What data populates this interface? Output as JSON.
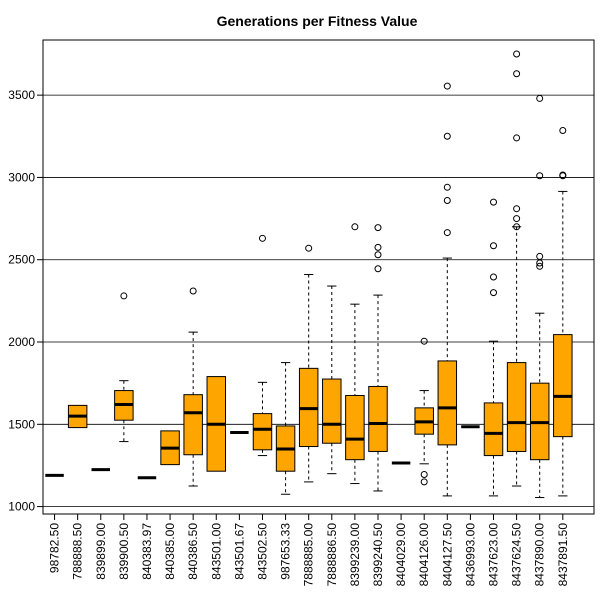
{
  "chart_data": {
    "type": "boxplot",
    "title": "Generations per Fitness Value",
    "xlabel": "",
    "ylabel": "",
    "ylim": [
      955,
      3835
    ],
    "y_ticks": [
      1000,
      1500,
      2000,
      2500,
      3000,
      3500
    ],
    "y_tick_labels": [
      "1000",
      "1500",
      "2000",
      "2500",
      "3000",
      "3500"
    ],
    "grid": "horizontal",
    "colors": {
      "box_fill": "#ffa500",
      "stroke": "#000000",
      "grid": "#000000",
      "background": "#ffffff"
    },
    "categories": [
      "98782.50",
      "788888.50",
      "839899.00",
      "839900.50",
      "840383.97",
      "840385.00",
      "840386.50",
      "843501.00",
      "843501.67",
      "843502.50",
      "987653.33",
      "7888885.00",
      "7888886.50",
      "8399239.00",
      "8399240.50",
      "8404029.00",
      "8404126.00",
      "8404127.50",
      "8436993.00",
      "8437623.00",
      "8437624.50",
      "8437890.00",
      "8437891.50"
    ],
    "boxes": [
      {
        "min": 1190,
        "q1": 1190,
        "median": 1190,
        "q3": 1190,
        "max": 1190,
        "outliers": []
      },
      {
        "min": 1480,
        "q1": 1480,
        "median": 1550,
        "q3": 1615,
        "max": 1615,
        "outliers": []
      },
      {
        "min": 1225,
        "q1": 1225,
        "median": 1225,
        "q3": 1225,
        "max": 1225,
        "outliers": []
      },
      {
        "min": 1395,
        "q1": 1525,
        "median": 1620,
        "q3": 1705,
        "max": 1765,
        "outliers": [
          2280
        ]
      },
      {
        "min": 1175,
        "q1": 1175,
        "median": 1175,
        "q3": 1175,
        "max": 1175,
        "outliers": []
      },
      {
        "min": 1255,
        "q1": 1255,
        "median": 1355,
        "q3": 1460,
        "max": 1460,
        "outliers": []
      },
      {
        "min": 1125,
        "q1": 1315,
        "median": 1570,
        "q3": 1680,
        "max": 2060,
        "outliers": [
          2310
        ]
      },
      {
        "min": 1215,
        "q1": 1215,
        "median": 1500,
        "q3": 1790,
        "max": 1790,
        "outliers": []
      },
      {
        "min": 1450,
        "q1": 1450,
        "median": 1450,
        "q3": 1450,
        "max": 1450,
        "outliers": []
      },
      {
        "min": 1310,
        "q1": 1345,
        "median": 1470,
        "q3": 1565,
        "max": 1755,
        "outliers": [
          2630
        ]
      },
      {
        "min": 1075,
        "q1": 1215,
        "median": 1350,
        "q3": 1490,
        "max": 1875,
        "outliers": []
      },
      {
        "min": 1150,
        "q1": 1365,
        "median": 1595,
        "q3": 1840,
        "max": 2410,
        "outliers": [
          2570
        ]
      },
      {
        "min": 1200,
        "q1": 1385,
        "median": 1500,
        "q3": 1775,
        "max": 2340,
        "outliers": []
      },
      {
        "min": 1140,
        "q1": 1285,
        "median": 1410,
        "q3": 1675,
        "max": 2230,
        "outliers": [
          2700
        ]
      },
      {
        "min": 1095,
        "q1": 1335,
        "median": 1505,
        "q3": 1730,
        "max": 2285,
        "outliers": [
          2445,
          2530,
          2575,
          2695
        ]
      },
      {
        "min": 1265,
        "q1": 1265,
        "median": 1265,
        "q3": 1265,
        "max": 1265,
        "outliers": []
      },
      {
        "min": 1260,
        "q1": 1440,
        "median": 1515,
        "q3": 1600,
        "max": 1705,
        "outliers": [
          1150,
          1195,
          2005
        ]
      },
      {
        "min": 1065,
        "q1": 1375,
        "median": 1600,
        "q3": 1885,
        "max": 2510,
        "outliers": [
          2665,
          2860,
          2940,
          3250,
          3555
        ]
      },
      {
        "min": 1485,
        "q1": 1485,
        "median": 1485,
        "q3": 1485,
        "max": 1485,
        "outliers": []
      },
      {
        "min": 1065,
        "q1": 1310,
        "median": 1445,
        "q3": 1630,
        "max": 2005,
        "outliers": [
          2300,
          2395,
          2585,
          2850
        ]
      },
      {
        "min": 1125,
        "q1": 1335,
        "median": 1510,
        "q3": 1875,
        "max": 2700,
        "outliers": [
          2700,
          2750,
          2810,
          3240,
          3630,
          3750
        ]
      },
      {
        "min": 1055,
        "q1": 1285,
        "median": 1510,
        "q3": 1750,
        "max": 2175,
        "outliers": [
          2460,
          2480,
          2520,
          3010,
          3480
        ]
      },
      {
        "min": 1065,
        "q1": 1425,
        "median": 1670,
        "q3": 2045,
        "max": 2915,
        "outliers": [
          3010,
          3015,
          3285
        ]
      }
    ]
  }
}
